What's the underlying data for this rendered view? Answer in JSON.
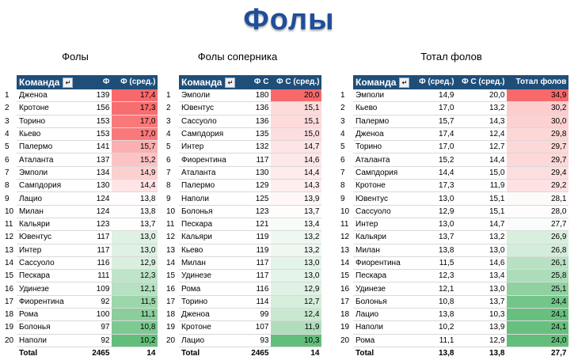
{
  "page": {
    "title": "Фолы"
  },
  "sections": [
    "Фолы",
    "Фолы соперника",
    "Тотал фолов"
  ],
  "table1": {
    "headers": [
      "Команда",
      "Ф",
      "Ф (сред.)"
    ],
    "rows": [
      [
        "1",
        "Дженоа",
        "139",
        "17,4"
      ],
      [
        "2",
        "Кротоне",
        "156",
        "17,3"
      ],
      [
        "3",
        "Торино",
        "153",
        "17,0"
      ],
      [
        "4",
        "Кьево",
        "153",
        "17,0"
      ],
      [
        "5",
        "Палермо",
        "141",
        "15,7"
      ],
      [
        "6",
        "Аталанта",
        "137",
        "15,2"
      ],
      [
        "7",
        "Эмполи",
        "134",
        "14,9"
      ],
      [
        "8",
        "Сампдория",
        "130",
        "14,4"
      ],
      [
        "9",
        "Лацио",
        "124",
        "13,8"
      ],
      [
        "10",
        "Милан",
        "124",
        "13,8"
      ],
      [
        "11",
        "Кальяри",
        "123",
        "13,7"
      ],
      [
        "12",
        "Ювентус",
        "117",
        "13,0"
      ],
      [
        "13",
        "Интер",
        "117",
        "13,0"
      ],
      [
        "14",
        "Сассуоло",
        "116",
        "12,9"
      ],
      [
        "15",
        "Пескара",
        "111",
        "12,3"
      ],
      [
        "16",
        "Удинезе",
        "109",
        "12,1"
      ],
      [
        "17",
        "Фиорентина",
        "92",
        "11,5"
      ],
      [
        "18",
        "Рома",
        "100",
        "11,1"
      ],
      [
        "19",
        "Болонья",
        "97",
        "10,8"
      ],
      [
        "20",
        "Наполи",
        "92",
        "10,2"
      ]
    ],
    "total": [
      "Total",
      "2465",
      "14"
    ]
  },
  "table2": {
    "headers": [
      "Команда",
      "Ф С",
      "Ф С (сред.)"
    ],
    "rows": [
      [
        "1",
        "Эмполи",
        "180",
        "20,0"
      ],
      [
        "2",
        "Ювентус",
        "136",
        "15,1"
      ],
      [
        "3",
        "Сассуоло",
        "136",
        "15,1"
      ],
      [
        "4",
        "Сампдория",
        "135",
        "15,0"
      ],
      [
        "5",
        "Интер",
        "132",
        "14,7"
      ],
      [
        "6",
        "Фиорентина",
        "117",
        "14,6"
      ],
      [
        "7",
        "Аталанта",
        "130",
        "14,4"
      ],
      [
        "8",
        "Палермо",
        "129",
        "14,3"
      ],
      [
        "9",
        "Наполи",
        "125",
        "13,9"
      ],
      [
        "10",
        "Болонья",
        "123",
        "13,7"
      ],
      [
        "11",
        "Пескара",
        "121",
        "13,4"
      ],
      [
        "12",
        "Кальяри",
        "119",
        "13,2"
      ],
      [
        "13",
        "Кьево",
        "119",
        "13,2"
      ],
      [
        "14",
        "Милан",
        "117",
        "13,0"
      ],
      [
        "15",
        "Удинезе",
        "117",
        "13,0"
      ],
      [
        "16",
        "Рома",
        "116",
        "12,9"
      ],
      [
        "17",
        "Торино",
        "114",
        "12,7"
      ],
      [
        "18",
        "Дженоа",
        "99",
        "12,4"
      ],
      [
        "19",
        "Кротоне",
        "107",
        "11,9"
      ],
      [
        "20",
        "Лацио",
        "93",
        "10,3"
      ]
    ],
    "total": [
      "Total",
      "2465",
      "14"
    ]
  },
  "table3": {
    "headers": [
      "Команда",
      "Ф (сред.)",
      "Ф С (сред.)",
      "Тотал фолов"
    ],
    "rows": [
      [
        "1",
        "Эмполи",
        "14,9",
        "20,0",
        "34,9"
      ],
      [
        "2",
        "Кьево",
        "17,0",
        "13,2",
        "30,2"
      ],
      [
        "3",
        "Палермо",
        "15,7",
        "14,3",
        "30,0"
      ],
      [
        "4",
        "Дженоа",
        "17,4",
        "12,4",
        "29,8"
      ],
      [
        "5",
        "Торино",
        "17,0",
        "12,7",
        "29,7"
      ],
      [
        "6",
        "Аталанта",
        "15,2",
        "14,4",
        "29,7"
      ],
      [
        "7",
        "Сампдория",
        "14,4",
        "15,0",
        "29,4"
      ],
      [
        "8",
        "Кротоне",
        "17,3",
        "11,9",
        "29,2"
      ],
      [
        "9",
        "Ювентус",
        "13,0",
        "15,1",
        "28,1"
      ],
      [
        "10",
        "Сассуоло",
        "12,9",
        "15,1",
        "28,0"
      ],
      [
        "11",
        "Интер",
        "13,0",
        "14,7",
        "27,7"
      ],
      [
        "12",
        "Кальяри",
        "13,7",
        "13,2",
        "26,9"
      ],
      [
        "13",
        "Милан",
        "13,8",
        "13,0",
        "26,8"
      ],
      [
        "14",
        "Фиорентина",
        "11,5",
        "14,6",
        "26,1"
      ],
      [
        "15",
        "Пескара",
        "12,3",
        "13,4",
        "25,8"
      ],
      [
        "16",
        "Удинезе",
        "12,1",
        "13,0",
        "25,1"
      ],
      [
        "17",
        "Болонья",
        "10,8",
        "13,7",
        "24,4"
      ],
      [
        "18",
        "Лацио",
        "13,8",
        "10,3",
        "24,1"
      ],
      [
        "19",
        "Наполи",
        "10,2",
        "13,9",
        "24,1"
      ],
      [
        "20",
        "Рома",
        "11,1",
        "12,9",
        "24,0"
      ]
    ],
    "total": [
      "Total",
      "13,8",
      "13,8",
      "27,7"
    ]
  },
  "colors": {
    "header_bg": "#1f4e79",
    "high": "#f8696b",
    "mid": "#ffffff",
    "low": "#63be7b",
    "title": "#1f4e9a"
  }
}
